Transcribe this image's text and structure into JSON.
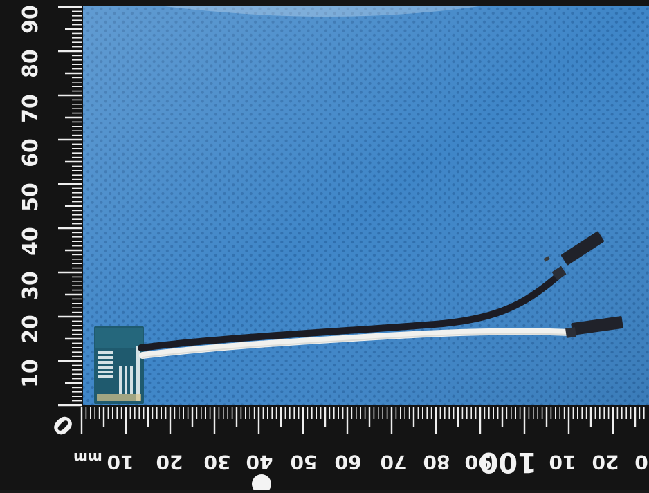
{
  "photo": {
    "subject": "pcb-module-with-two-wire-jumper-cable",
    "colors": {
      "mat": "#3f86c8",
      "mat_dot": "#2f6fae",
      "ruler": "#141414",
      "ruler_marks": "#eeeeee",
      "pcb": "#1f5a6e",
      "wire_black": "#1c1c24",
      "wire_white": "#f1f1ee",
      "connector": "#20222a"
    }
  },
  "ruler": {
    "unit": "mm",
    "vertical_labels": [
      "90",
      "80",
      "70",
      "60",
      "50",
      "40",
      "30",
      "20",
      "10"
    ],
    "zero": "0",
    "horizontal_labels": [
      "10",
      "20",
      "30",
      "40",
      "50",
      "60",
      "70",
      "80",
      "90",
      "100",
      "10",
      "20",
      "0"
    ]
  }
}
